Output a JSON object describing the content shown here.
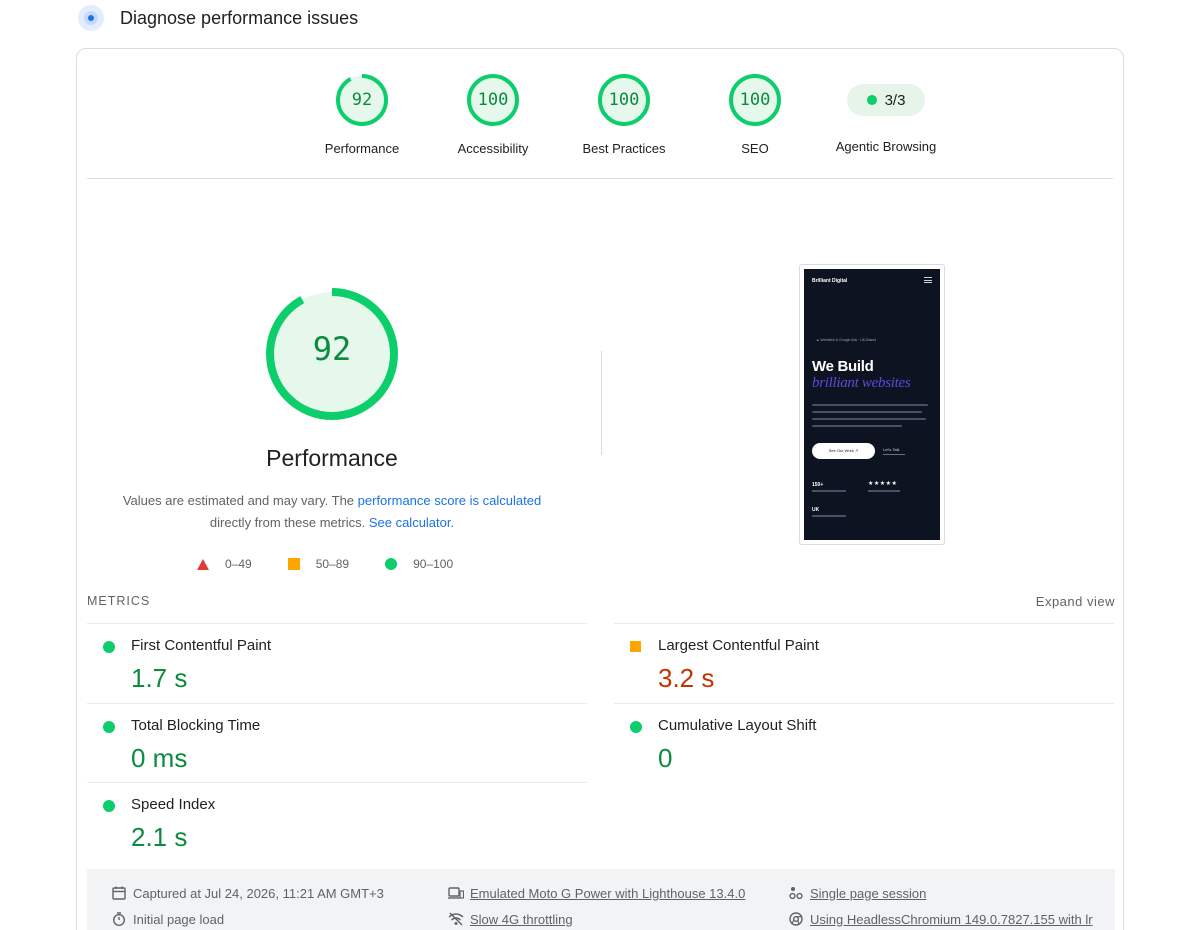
{
  "header": {
    "title": "Diagnose performance issues"
  },
  "categories": [
    {
      "score": "92",
      "label": "Performance",
      "value": 92
    },
    {
      "score": "100",
      "label": "Accessibility",
      "value": 100
    },
    {
      "score": "100",
      "label": "Best Practices",
      "value": 100
    },
    {
      "score": "100",
      "label": "SEO",
      "value": 100
    },
    {
      "score": "3/3",
      "label": "Agentic Browsing"
    }
  ],
  "performance": {
    "score": "92",
    "value": 92,
    "label": "Performance",
    "desc_1": "Values are estimated and may vary. The ",
    "desc_link": "performance score is calculated",
    "desc_2": "directly from these metrics. ",
    "desc_link2": "See calculator."
  },
  "legend": {
    "fail": "0–49",
    "average": "50–89",
    "pass": "90–100"
  },
  "screenshot": {
    "brand": "Brilliant Digital",
    "tagline": "▲ Websites & Google Ads · UK-Based",
    "heading_1": "We Build",
    "heading_2": "brilliant websites",
    "button_primary": "See Our Work ↗",
    "button_secondary": "Let's Talk",
    "stat_1": "150+",
    "stars": "★★★★★",
    "stat_2": "UK"
  },
  "metrics": {
    "title": "METRICS",
    "expand": "Expand view",
    "fcp": {
      "name": "First Contentful Paint",
      "value": "1.7 s"
    },
    "lcp": {
      "name": "Largest Contentful Paint",
      "value": "3.2 s"
    },
    "tbt": {
      "name": "Total Blocking Time",
      "value": "0 ms"
    },
    "cls": {
      "name": "Cumulative Layout Shift",
      "value": "0"
    },
    "si": {
      "name": "Speed Index",
      "value": "2.1 s"
    }
  },
  "footer": {
    "captured": "Captured at Jul 24, 2026, 11:21 AM GMT+3",
    "load": "Initial page load",
    "device": "Emulated Moto G Power with Lighthouse 13.4.0",
    "throttling": "Slow 4G throttling",
    "session": "Single page session",
    "browser": "Using HeadlessChromium 149.0.7827.155 with lr"
  },
  "colors": {
    "pass": "#0cce6b",
    "pass_text": "#0c8a3f",
    "average": "#ffa400",
    "average_text": "#c33300",
    "fail": "#e53935",
    "link": "#1a73e8"
  }
}
